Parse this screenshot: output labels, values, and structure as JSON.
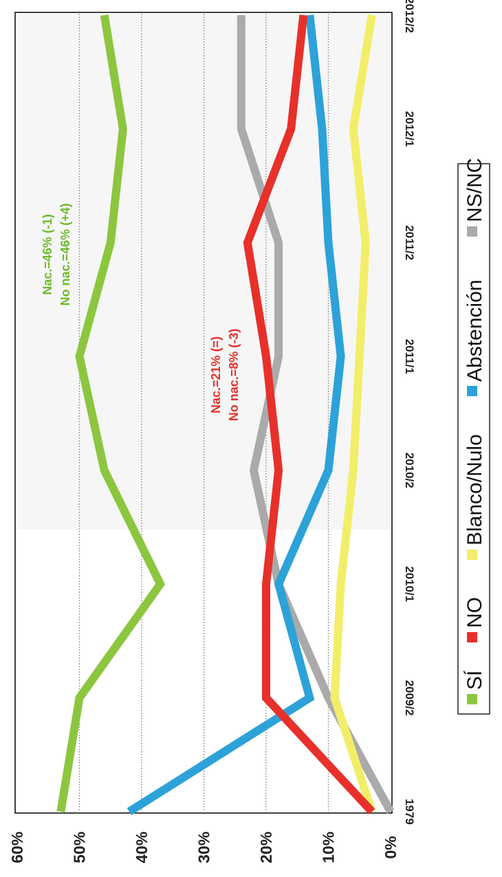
{
  "chart_data": {
    "type": "line",
    "orientation": "rotated-90-clockwise",
    "title": "",
    "xlabel": "",
    "ylabel": "",
    "categories": [
      "1979",
      "2009/2",
      "2010/1",
      "2010/2",
      "2011/1",
      "2011/2",
      "2012/1",
      "2012/2"
    ],
    "y_ticks": [
      "0%",
      "10%",
      "20%",
      "30%",
      "40%",
      "50%",
      "60%"
    ],
    "ylim": [
      0,
      60
    ],
    "grid": true,
    "legend_position": "right",
    "series": [
      {
        "name": "SÍ",
        "color": "#8cc63f",
        "values": [
          53,
          50,
          37,
          46,
          50,
          45,
          43,
          46
        ]
      },
      {
        "name": "NO",
        "color": "#e8302a",
        "values": [
          3,
          20,
          20,
          18,
          20,
          23,
          16,
          14
        ]
      },
      {
        "name": "Blanco/Nulo",
        "color": "#f2ee6a",
        "values": [
          3,
          9,
          8,
          6,
          5,
          4,
          6,
          3
        ]
      },
      {
        "name": "Abstención",
        "color": "#2ca2d9",
        "values": [
          42,
          13,
          18,
          10,
          8,
          10,
          11,
          13
        ]
      },
      {
        "name": "NS/NC",
        "color": "#aaaaaa",
        "values": [
          0,
          10,
          18,
          22,
          18,
          18,
          24,
          24
        ]
      }
    ],
    "annotations": [
      {
        "color": "#6fba2c",
        "lines": [
          "Nac.=46% (-1)",
          "No nac.=46% (+4)"
        ]
      },
      {
        "color": "#e8302a",
        "lines": [
          "Nac.=21% (=)",
          "No nac.=8% (-3)"
        ]
      }
    ]
  }
}
